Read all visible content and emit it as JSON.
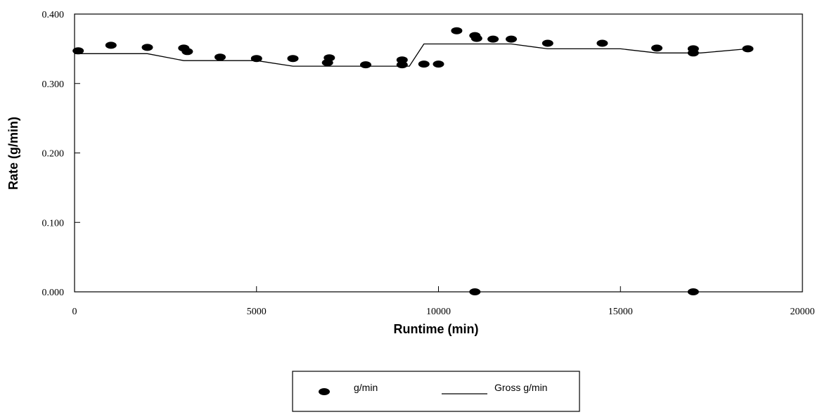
{
  "chart_data": {
    "type": "scatter",
    "xlabel": "Runtime (min)",
    "ylabel": "Rate (g/min)",
    "xlim": [
      0,
      20000
    ],
    "ylim": [
      0,
      0.4
    ],
    "xticks": [
      0,
      5000,
      10000,
      15000,
      20000
    ],
    "xtick_labels": [
      "0",
      "5000",
      "10000",
      "15000",
      "20000"
    ],
    "yticks": [
      0,
      0.1,
      0.2,
      0.3,
      0.4
    ],
    "ytick_labels": [
      "0.000",
      "0.100",
      "0.200",
      "0.300",
      "0.400"
    ],
    "grid": false,
    "legend_position": "bottom-center",
    "series": [
      {
        "name": "g/min",
        "kind": "scatter",
        "color": "#000000",
        "points": [
          [
            100,
            0.347
          ],
          [
            1000,
            0.355
          ],
          [
            2000,
            0.352
          ],
          [
            3000,
            0.351
          ],
          [
            3100,
            0.346
          ],
          [
            4000,
            0.338
          ],
          [
            5000,
            0.336
          ],
          [
            6000,
            0.336
          ],
          [
            7000,
            0.337
          ],
          [
            6950,
            0.33
          ],
          [
            8000,
            0.327
          ],
          [
            9000,
            0.334
          ],
          [
            9000,
            0.327
          ],
          [
            9600,
            0.328
          ],
          [
            10000,
            0.328
          ],
          [
            10500,
            0.376
          ],
          [
            11000,
            0.369
          ],
          [
            11050,
            0.365
          ],
          [
            11500,
            0.364
          ],
          [
            12000,
            0.364
          ],
          [
            13000,
            0.358
          ],
          [
            14500,
            0.358
          ],
          [
            16000,
            0.351
          ],
          [
            17000,
            0.35
          ],
          [
            17000,
            0.344
          ],
          [
            18500,
            0.35
          ],
          [
            11000,
            0.0
          ],
          [
            17000,
            0.0
          ]
        ]
      },
      {
        "name": "Gross g/min",
        "kind": "line",
        "color": "#000000",
        "points": [
          [
            0,
            0.343
          ],
          [
            2000,
            0.343
          ],
          [
            3000,
            0.333
          ],
          [
            5000,
            0.333
          ],
          [
            6000,
            0.325
          ],
          [
            9200,
            0.325
          ],
          [
            9600,
            0.357
          ],
          [
            12000,
            0.357
          ],
          [
            13000,
            0.35
          ],
          [
            15000,
            0.35
          ],
          [
            16000,
            0.344
          ],
          [
            17200,
            0.344
          ],
          [
            18500,
            0.35
          ]
        ]
      }
    ]
  }
}
